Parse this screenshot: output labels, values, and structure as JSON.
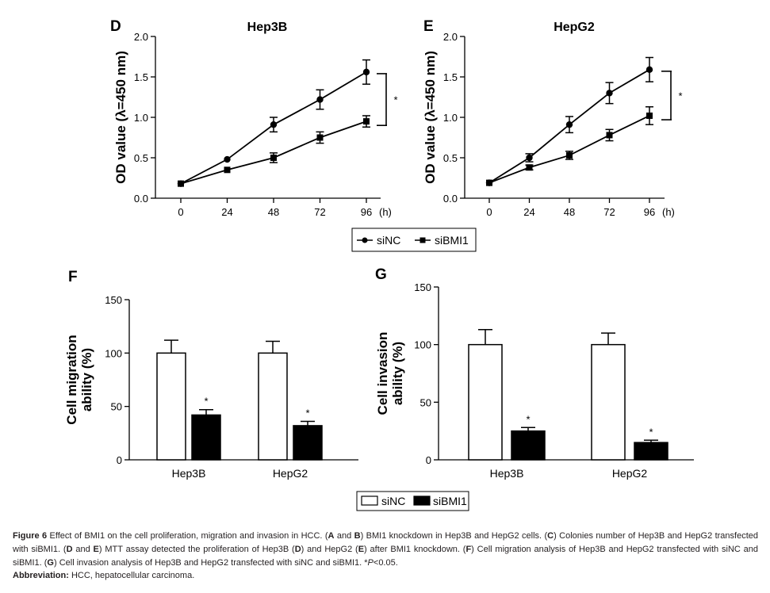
{
  "panels": {
    "D": "D",
    "E": "E",
    "F": "F",
    "G": "G"
  },
  "chart_data": [
    {
      "panel": "D",
      "type": "line",
      "title": "Hep3B",
      "ylabel": "OD value (λ=450 nm)",
      "xlabel": "(h)",
      "x": [
        0,
        24,
        48,
        72,
        96
      ],
      "xticklabels": [
        "0",
        "24",
        "48",
        "72",
        "96"
      ],
      "ylim": [
        0,
        2.0
      ],
      "yticks": [
        "0.0",
        "0.5",
        "1.0",
        "1.5",
        "2.0"
      ],
      "series": [
        {
          "name": "siNC",
          "marker": "circle",
          "values": [
            0.18,
            0.48,
            0.91,
            1.22,
            1.56
          ],
          "errors": [
            0.02,
            0.02,
            0.09,
            0.12,
            0.15
          ]
        },
        {
          "name": "siBMI1",
          "marker": "square",
          "values": [
            0.18,
            0.35,
            0.5,
            0.75,
            0.95
          ],
          "errors": [
            0.02,
            0.02,
            0.06,
            0.07,
            0.07
          ]
        }
      ],
      "significance": "*"
    },
    {
      "panel": "E",
      "type": "line",
      "title": "HepG2",
      "ylabel": "OD value (λ=450 nm)",
      "xlabel": "(h)",
      "x": [
        0,
        24,
        48,
        72,
        96
      ],
      "xticklabels": [
        "0",
        "24",
        "48",
        "72",
        "96"
      ],
      "ylim": [
        0,
        2.0
      ],
      "yticks": [
        "0.0",
        "0.5",
        "1.0",
        "1.5",
        "2.0"
      ],
      "series": [
        {
          "name": "siNC",
          "marker": "circle",
          "values": [
            0.19,
            0.5,
            0.91,
            1.3,
            1.59
          ],
          "errors": [
            0.02,
            0.05,
            0.1,
            0.13,
            0.15
          ]
        },
        {
          "name": "siBMI1",
          "marker": "square",
          "values": [
            0.19,
            0.38,
            0.53,
            0.78,
            1.02
          ],
          "errors": [
            0.02,
            0.03,
            0.05,
            0.07,
            0.11
          ]
        }
      ],
      "significance": "*"
    },
    {
      "panel": "F",
      "type": "bar",
      "ylabel": "Cell migration ability (%)",
      "categories": [
        "Hep3B",
        "HepG2"
      ],
      "ylim": [
        0,
        150
      ],
      "yticks": [
        "0",
        "50",
        "100",
        "150"
      ],
      "series": [
        {
          "name": "siNC",
          "fill": "white",
          "values": [
            100,
            100
          ],
          "errors": [
            12,
            11
          ]
        },
        {
          "name": "siBMI1",
          "fill": "black",
          "values": [
            42,
            32
          ],
          "errors": [
            5,
            4
          ]
        }
      ],
      "significance": [
        "*",
        "*"
      ]
    },
    {
      "panel": "G",
      "type": "bar",
      "ylabel": "Cell invasion ability (%)",
      "categories": [
        "Hep3B",
        "HepG2"
      ],
      "ylim": [
        0,
        150
      ],
      "yticks": [
        "0",
        "50",
        "100",
        "150"
      ],
      "series": [
        {
          "name": "siNC",
          "fill": "white",
          "values": [
            100,
            100
          ],
          "errors": [
            13,
            10
          ]
        },
        {
          "name": "siBMI1",
          "fill": "black",
          "values": [
            25,
            15
          ],
          "errors": [
            3,
            2
          ]
        }
      ],
      "significance": [
        "*",
        "*"
      ]
    }
  ],
  "legend_line": {
    "items": [
      "siNC",
      "siBMI1"
    ]
  },
  "legend_bar": {
    "items": [
      "siNC",
      "siBMI1"
    ]
  },
  "caption": {
    "figure_label": "Figure 6",
    "intro": "Effect of BMI1 on the cell proliferation, migration and invasion in HCC. (",
    "p1": "A",
    "t1": " and ",
    "p2": "B",
    "t2": ") BMI1 knockdown in Hep3B and HepG2 cells. (",
    "p3": "C",
    "t3": ") Colonies number of Hep3B and HepG2 transfected with siBMI1. (",
    "p4": "D",
    "t4": " and ",
    "p5": "E",
    "t5": ") MTT assay detected the proliferation of Hep3B (",
    "p6": "D",
    "t6": ") and HepG2 (",
    "p7": "E",
    "t7": ") after BMI1 knockdown. (",
    "p8": "F",
    "t8": ") Cell migration analysis of Hep3B and HepG2 transfected with siNC and siBMI1. (",
    "p9": "G",
    "t9": ") Cell invasion analysis of Hep3B and HepG2 transfected with siNC and siBMI1. *",
    "pval": "P",
    "t10": "<0.05.",
    "abbr_label": "Abbreviation:",
    "abbr_text": " HCC, hepatocellular carcinoma."
  }
}
